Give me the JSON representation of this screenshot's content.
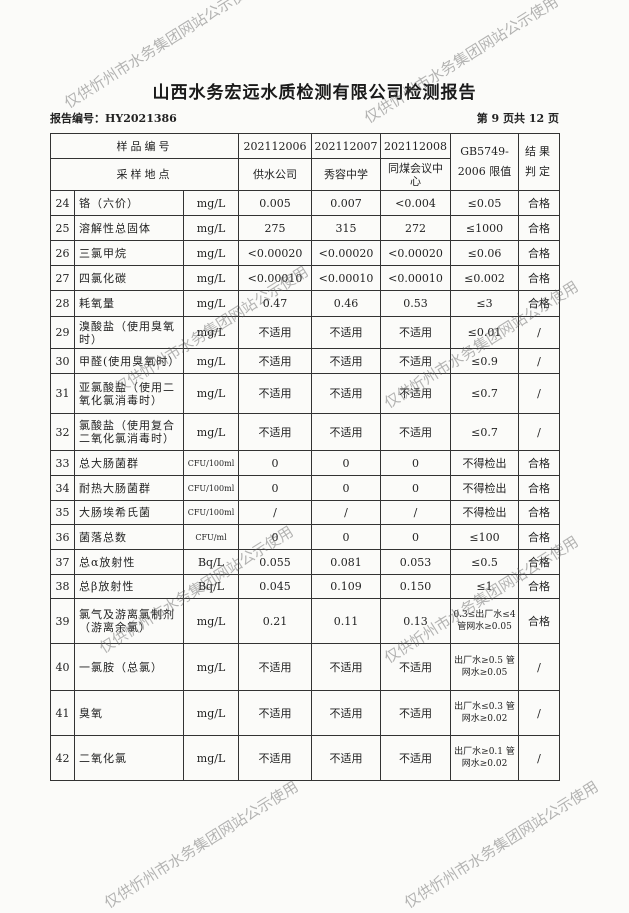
{
  "title": "山西水务宏远水质检测有限公司检测报告",
  "report_number": "报告编号：HY2021386",
  "page_info": "第 9 页共 12 页",
  "watermark": "仅供忻州市水务集团网站公示使用",
  "header": {
    "sample_no_label": "样品编号",
    "site_label": "采样地点",
    "samples": [
      "202112006",
      "202112007",
      "202112008"
    ],
    "sites": [
      "供水公司",
      "秀容中学",
      "同煤会议中心"
    ],
    "standard": "GB5749-2006 限值",
    "result": "结果判定"
  },
  "rows": [
    {
      "no": "24",
      "name": "铬（六价）",
      "unit": "mg/L",
      "v": [
        "0.005",
        "0.007",
        "<0.004"
      ],
      "limit": "≤0.05",
      "result": "合格"
    },
    {
      "no": "25",
      "name": "溶解性总固体",
      "unit": "mg/L",
      "v": [
        "275",
        "315",
        "272"
      ],
      "limit": "≤1000",
      "result": "合格"
    },
    {
      "no": "26",
      "name": "三氯甲烷",
      "unit": "mg/L",
      "v": [
        "<0.00020",
        "<0.00020",
        "<0.00020"
      ],
      "limit": "≤0.06",
      "result": "合格"
    },
    {
      "no": "27",
      "name": "四氯化碳",
      "unit": "mg/L",
      "v": [
        "<0.00010",
        "<0.00010",
        "<0.00010"
      ],
      "limit": "≤0.002",
      "result": "合格"
    },
    {
      "no": "28",
      "name": "耗氧量",
      "unit": "mg/L",
      "v": [
        "0.47",
        "0.46",
        "0.53"
      ],
      "limit": "≤3",
      "result": "合格"
    },
    {
      "no": "29",
      "name": "溴酸盐（使用臭氧时）",
      "unit": "mg/L",
      "v": [
        "不适用",
        "不适用",
        "不适用"
      ],
      "limit": "≤0.01",
      "result": "/"
    },
    {
      "no": "30",
      "name": "甲醛(使用臭氧时）",
      "unit": "mg/L",
      "v": [
        "不适用",
        "不适用",
        "不适用"
      ],
      "limit": "≤0.9",
      "result": "/"
    },
    {
      "no": "31",
      "name": "亚氯酸盐（使用二氧化氯消毒时）",
      "unit": "mg/L",
      "v": [
        "不适用",
        "不适用",
        "不适用"
      ],
      "limit": "≤0.7",
      "result": "/"
    },
    {
      "no": "32",
      "name": "氯酸盐（使用复合二氧化氯消毒时）",
      "unit": "mg/L",
      "v": [
        "不适用",
        "不适用",
        "不适用"
      ],
      "limit": "≤0.7",
      "result": "/"
    },
    {
      "no": "33",
      "name": "总大肠菌群",
      "unit": "CFU/100ml",
      "v": [
        "0",
        "0",
        "0"
      ],
      "limit": "不得检出",
      "result": "合格"
    },
    {
      "no": "34",
      "name": "耐热大肠菌群",
      "unit": "CFU/100ml",
      "v": [
        "0",
        "0",
        "0"
      ],
      "limit": "不得检出",
      "result": "合格"
    },
    {
      "no": "35",
      "name": "大肠埃希氏菌",
      "unit": "CFU/100ml",
      "v": [
        "/",
        "/",
        "/"
      ],
      "limit": "不得检出",
      "result": "合格"
    },
    {
      "no": "36",
      "name": "菌落总数",
      "unit": "CFU/ml",
      "v": [
        "0",
        "0",
        "0"
      ],
      "limit": "≤100",
      "result": "合格"
    },
    {
      "no": "37",
      "name": "总α放射性",
      "unit": "Bq/L",
      "v": [
        "0.055",
        "0.081",
        "0.053"
      ],
      "limit": "≤0.5",
      "result": "合格"
    },
    {
      "no": "38",
      "name": "总β放射性",
      "unit": "Bq/L",
      "v": [
        "0.045",
        "0.109",
        "0.150"
      ],
      "limit": "≤1",
      "result": "合格"
    },
    {
      "no": "39",
      "name": "氯气及游离氯制剂（游离余氯）",
      "unit": "mg/L",
      "v": [
        "0.21",
        "0.11",
        "0.13"
      ],
      "limit": "0.3≤出厂水≤4 管网水≥0.05",
      "result": "合格"
    },
    {
      "no": "40",
      "name": "一氯胺（总氯）",
      "unit": "mg/L",
      "v": [
        "不适用",
        "不适用",
        "不适用"
      ],
      "limit": "出厂水≥0.5 管网水≥0.05",
      "result": "/"
    },
    {
      "no": "41",
      "name": "臭氧",
      "unit": "mg/L",
      "v": [
        "不适用",
        "不适用",
        "不适用"
      ],
      "limit": "出厂水≤0.3 管网水≥0.02",
      "result": "/"
    },
    {
      "no": "42",
      "name": "二氧化氯",
      "unit": "mg/L",
      "v": [
        "不适用",
        "不适用",
        "不适用"
      ],
      "limit": "出厂水≥0.1 管网水≥0.02",
      "result": "/"
    }
  ]
}
